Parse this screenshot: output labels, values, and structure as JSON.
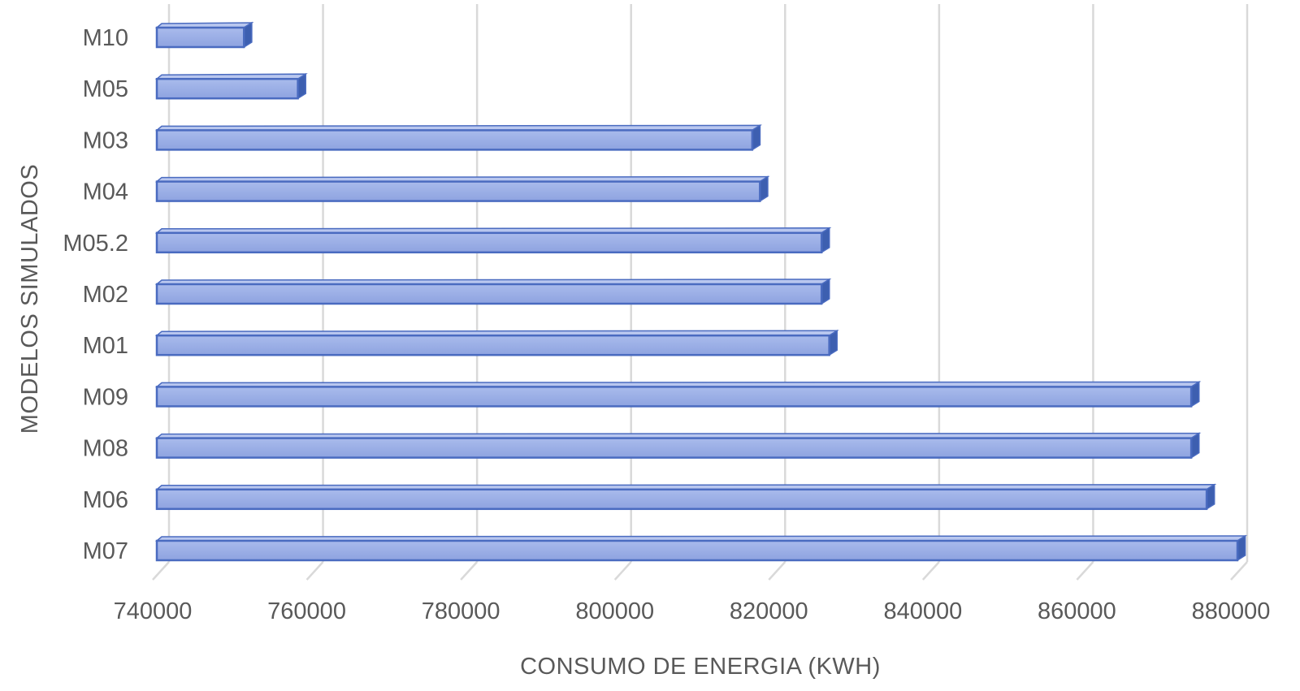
{
  "chart_data": {
    "type": "bar",
    "orientation": "horizontal",
    "style": "3d-bar",
    "categories": [
      "M10",
      "M05",
      "M03",
      "M04",
      "M05.2",
      "M02",
      "M01",
      "M09",
      "M08",
      "M06",
      "M07"
    ],
    "values": [
      751000,
      758000,
      817000,
      818000,
      826000,
      826000,
      827000,
      874000,
      874000,
      876000,
      880000
    ],
    "xlabel": "CONSUMO DE ENERGIA (KWH)",
    "ylabel": "MODELOS SIMULADOS",
    "xlim": [
      740000,
      880000
    ],
    "xticks": [
      740000,
      760000,
      780000,
      800000,
      820000,
      840000,
      860000,
      880000
    ],
    "xtick_labels": [
      "740000",
      "760000",
      "780000",
      "800000",
      "820000",
      "840000",
      "860000",
      "880000"
    ],
    "grid": "vertical",
    "legend": "none",
    "colors": {
      "bar_front": "#9aaee6",
      "bar_top": "#b9c7ef",
      "bar_side": "#3d5fb0",
      "bar_edge": "#4a6bc0",
      "grid": "#d9d9d9",
      "text": "#595959"
    }
  }
}
